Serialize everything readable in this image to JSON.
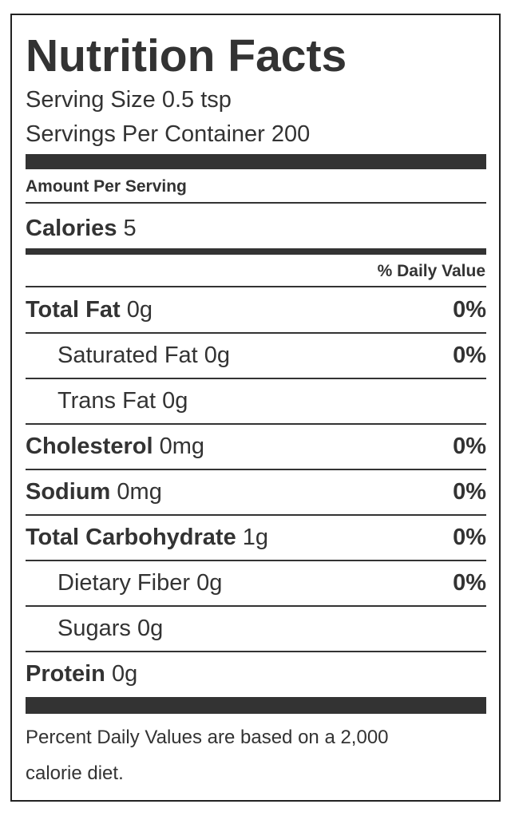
{
  "header": {
    "title": "Nutrition Facts",
    "serving_size": "Serving Size 0.5 tsp",
    "servings_per_container": "Servings Per Container 200"
  },
  "amount_per_serving": "Amount Per Serving",
  "calories": {
    "label": "Calories",
    "amount": "5"
  },
  "daily_value_header": "% Daily Value",
  "rows": [
    {
      "label": "Total Fat",
      "amount": "0g",
      "dv": "0%",
      "indent": false
    },
    {
      "label": "Saturated Fat",
      "amount": "0g",
      "dv": "0%",
      "indent": true
    },
    {
      "label": "Trans Fat",
      "amount": "0g",
      "indent": true
    },
    {
      "label": "Cholesterol",
      "amount": "0mg",
      "dv": "0%",
      "indent": false
    },
    {
      "label": "Sodium",
      "amount": "0mg",
      "dv": "0%",
      "indent": false
    },
    {
      "label": "Total Carbohydrate",
      "amount": "1g",
      "dv": "0%",
      "indent": false
    },
    {
      "label": "Dietary Fiber",
      "amount": "0g",
      "dv": "0%",
      "indent": true
    },
    {
      "label": "Sugars",
      "amount": "0g",
      "indent": true
    },
    {
      "label": "Protein",
      "amount": "0g",
      "indent": false
    }
  ],
  "footnote": "Percent Daily Values are based on a 2,000 calorie diet."
}
